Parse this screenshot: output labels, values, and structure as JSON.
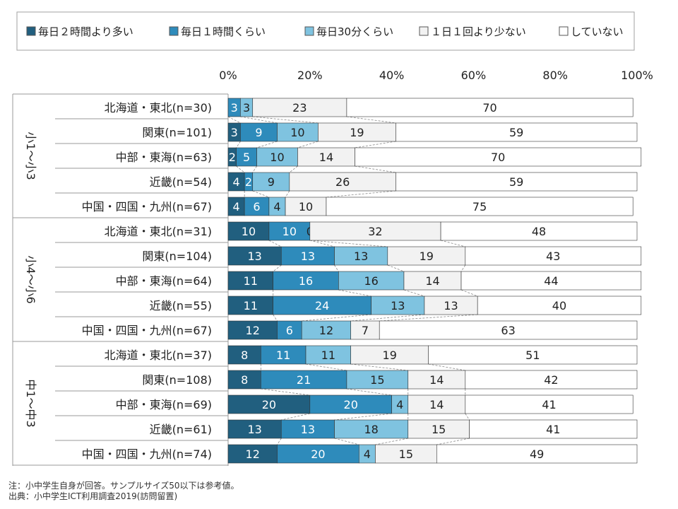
{
  "legend": [
    {
      "label": "毎日２時間より多い",
      "color": "#215f7f"
    },
    {
      "label": "毎日１時間くらい",
      "color": "#2e8bbb"
    },
    {
      "label": "毎日30分くらい",
      "color": "#7fc3e0"
    },
    {
      "label": "１日１回より少ない",
      "color": "#f2f2f2"
    },
    {
      "label": "していない",
      "color": "#ffffff"
    }
  ],
  "chart_data": {
    "type": "bar",
    "orientation": "horizontal",
    "stacked": true,
    "xlim": [
      0,
      100
    ],
    "xticks": [
      "0%",
      "20%",
      "40%",
      "60%",
      "80%",
      "100%"
    ],
    "series_names": [
      "毎日２時間より多い",
      "毎日１時間くらい",
      "毎日30分くらい",
      "１日１回より少ない",
      "していない"
    ],
    "groups": [
      {
        "name": "小1～小3",
        "rows": [
          {
            "label": "北海道・東北(n=30)",
            "values": [
              0,
              3,
              3,
              23,
              70
            ],
            "labels": [
              "",
              "3",
              "3",
              "23",
              "70"
            ]
          },
          {
            "label": "関東(n=101)",
            "values": [
              3,
              9,
              10,
              19,
              59
            ],
            "labels": [
              "3",
              "9",
              "10",
              "19",
              "59"
            ]
          },
          {
            "label": "中部・東海(n=63)",
            "values": [
              2,
              5,
              10,
              14,
              70
            ],
            "labels": [
              "2",
              "5",
              "10",
              "14",
              "70"
            ]
          },
          {
            "label": "近畿(n=54)",
            "values": [
              4,
              2,
              9,
              26,
              59
            ],
            "labels": [
              "4",
              "2",
              "9",
              "26",
              "59"
            ]
          },
          {
            "label": "中国・四国・九州(n=67)",
            "values": [
              4,
              6,
              4,
              10,
              75
            ],
            "labels": [
              "4",
              "6",
              "4",
              "10",
              "75"
            ]
          }
        ]
      },
      {
        "name": "小4～小6",
        "rows": [
          {
            "label": "北海道・東北(n=31)",
            "values": [
              10,
              10,
              0,
              32,
              48
            ],
            "labels": [
              "10",
              "10",
              "0",
              "32",
              "48"
            ]
          },
          {
            "label": "関東(n=104)",
            "values": [
              13,
              13,
              13,
              19,
              43
            ],
            "labels": [
              "13",
              "13",
              "13",
              "19",
              "43"
            ]
          },
          {
            "label": "中部・東海(n=64)",
            "values": [
              11,
              16,
              16,
              14,
              44
            ],
            "labels": [
              "11",
              "16",
              "16",
              "14",
              "44"
            ]
          },
          {
            "label": "近畿(n=55)",
            "values": [
              11,
              24,
              13,
              13,
              40
            ],
            "labels": [
              "11",
              "24",
              "13",
              "13",
              "40"
            ]
          },
          {
            "label": "中国・四国・九州(n=67)",
            "values": [
              12,
              6,
              12,
              7,
              63
            ],
            "labels": [
              "12",
              "6",
              "12",
              "7",
              "63"
            ]
          }
        ]
      },
      {
        "name": "中1～中3",
        "rows": [
          {
            "label": "北海道・東北(n=37)",
            "values": [
              8,
              11,
              11,
              19,
              51
            ],
            "labels": [
              "8",
              "11",
              "11",
              "19",
              "51"
            ]
          },
          {
            "label": "関東(n=108)",
            "values": [
              8,
              21,
              15,
              14,
              42
            ],
            "labels": [
              "8",
              "21",
              "15",
              "14",
              "42"
            ]
          },
          {
            "label": "中部・東海(n=69)",
            "values": [
              20,
              20,
              4,
              14,
              41
            ],
            "labels": [
              "20",
              "20",
              "4",
              "14",
              "41"
            ]
          },
          {
            "label": "近畿(n=61)",
            "values": [
              13,
              13,
              18,
              15,
              41
            ],
            "labels": [
              "13",
              "13",
              "18",
              "15",
              "41"
            ]
          },
          {
            "label": "中国・四国・九州(n=74)",
            "values": [
              12,
              20,
              4,
              15,
              49
            ],
            "labels": [
              "12",
              "20",
              "4",
              "15",
              "49"
            ]
          }
        ]
      }
    ]
  },
  "notes": [
    "注：小中学生自身が回答。サンプルサイズ50以下は参考値。",
    "出典：小中学生ICT利用調査2019(訪問留置)"
  ]
}
